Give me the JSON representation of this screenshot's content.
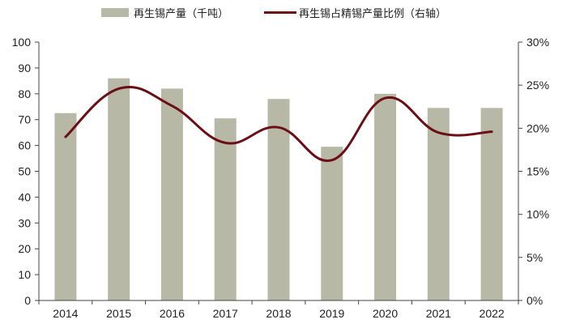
{
  "chart_data": {
    "type": "bar",
    "categories": [
      "2014",
      "2015",
      "2016",
      "2017",
      "2018",
      "2019",
      "2020",
      "2021",
      "2022"
    ],
    "series": [
      {
        "name": "再生锡产量（千吨）",
        "type": "bar",
        "axis": "left",
        "color": "#b8b8a6",
        "values": [
          72.5,
          86,
          82,
          70.5,
          78,
          59.5,
          80,
          74.5,
          74.5
        ]
      },
      {
        "name": "再生锡占精锡产量比例（右轴）",
        "type": "line",
        "axis": "right",
        "color": "#6b0f14",
        "values": [
          19.0,
          24.6,
          22.6,
          18.3,
          20.1,
          16.3,
          23.5,
          19.5,
          19.6
        ]
      }
    ],
    "y_left": {
      "min": 0,
      "max": 100,
      "step": 10,
      "tick_labels": [
        "0",
        "10",
        "20",
        "30",
        "40",
        "50",
        "60",
        "70",
        "80",
        "90",
        "100"
      ]
    },
    "y_right": {
      "min": 0,
      "max": 30,
      "step": 5,
      "unit": "%",
      "tick_labels": [
        "0%",
        "5%",
        "10%",
        "15%",
        "20%",
        "25%",
        "30%"
      ]
    },
    "grid": false,
    "legend_position": "top"
  }
}
